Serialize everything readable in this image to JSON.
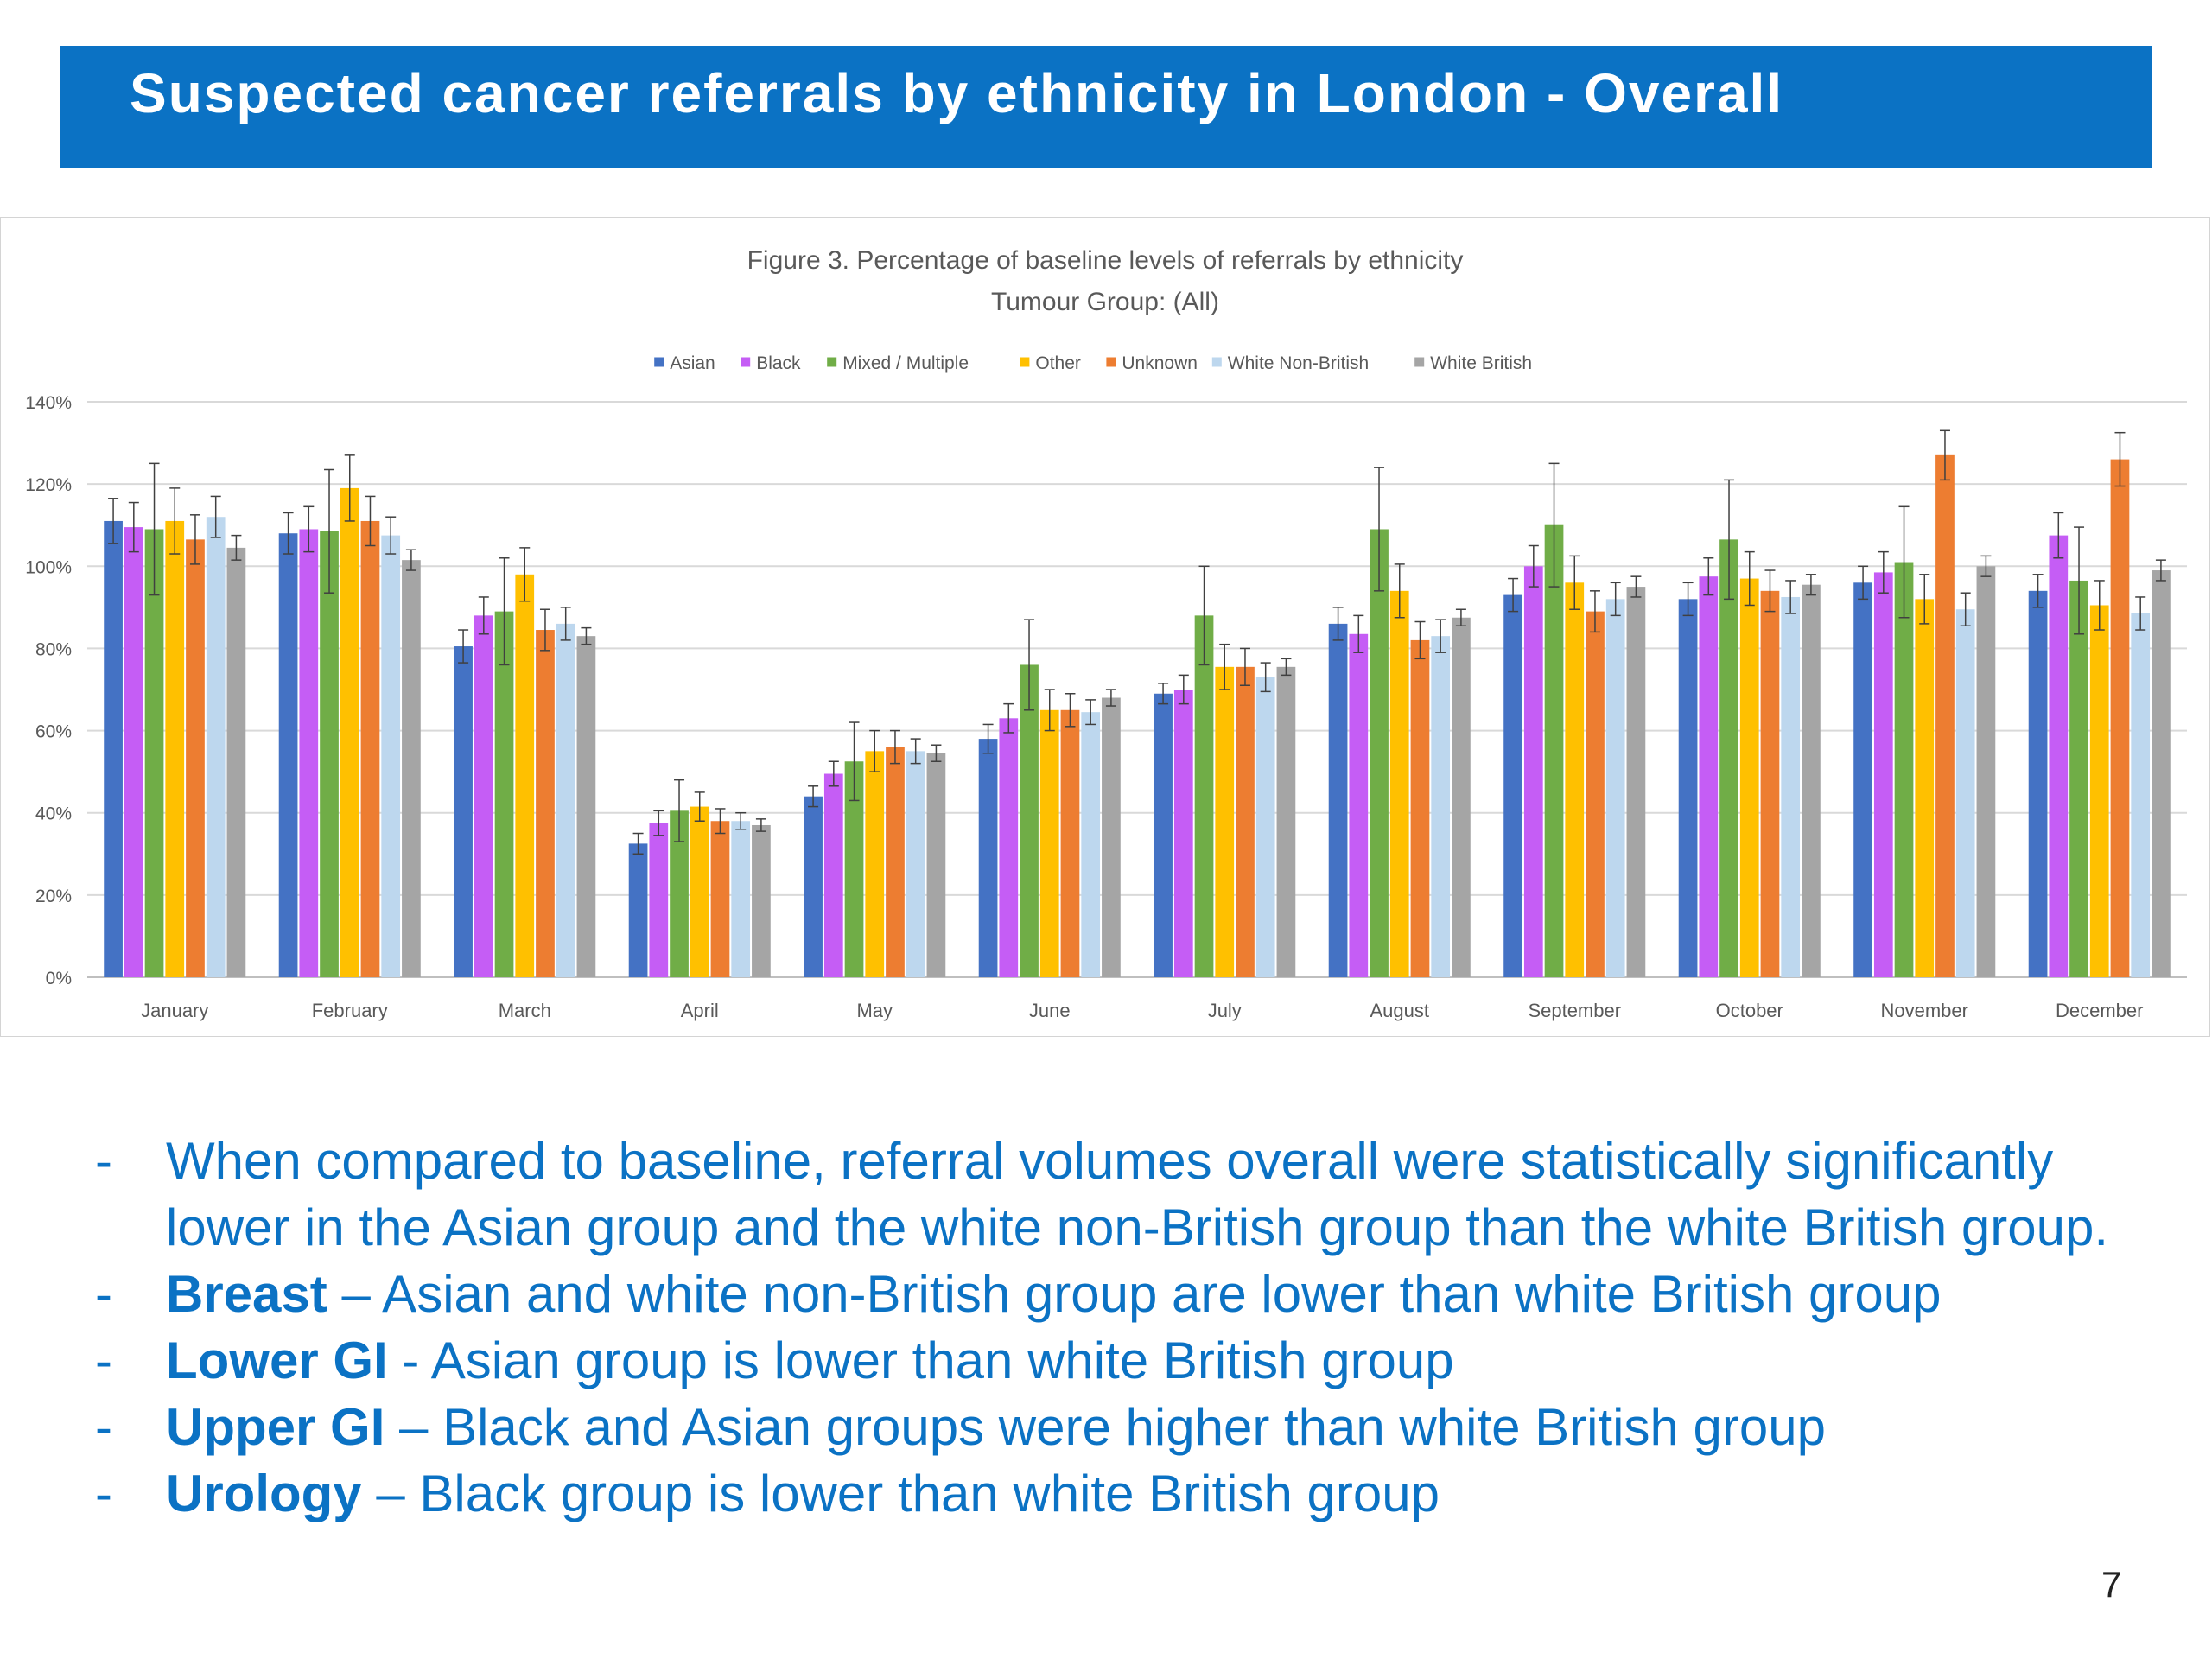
{
  "slide": {
    "title": "Suspected cancer referrals by ethnicity in London - Overall",
    "page_number": "7"
  },
  "chart_data": {
    "type": "bar",
    "title": "Figure 3. Percentage of baseline levels of referrals by ethnicity",
    "subtitle": "Tumour Group: (All)",
    "legend_position": "top",
    "grid": true,
    "ylim": [
      0,
      140
    ],
    "y_ticks": [
      "0%",
      "20%",
      "40%",
      "60%",
      "80%",
      "100%",
      "120%",
      "140%"
    ],
    "categories": [
      "January",
      "February",
      "March",
      "April",
      "May",
      "June",
      "July",
      "August",
      "September",
      "October",
      "November",
      "December"
    ],
    "series": [
      {
        "name": "Asian",
        "color": "#4472c4",
        "values": [
          111,
          108,
          80.5,
          32.5,
          44,
          58,
          69,
          86,
          93,
          92,
          96,
          94
        ],
        "error": [
          5.5,
          5,
          4,
          2.5,
          2.5,
          3.5,
          2.5,
          4,
          4,
          4,
          4,
          4
        ]
      },
      {
        "name": "Black",
        "color": "#c55df5",
        "values": [
          109.5,
          109,
          88,
          37.5,
          49.5,
          63,
          70,
          83.5,
          100,
          97.5,
          98.5,
          107.5
        ],
        "error": [
          6,
          5.5,
          4.5,
          3,
          3,
          3.5,
          3.5,
          4.5,
          5,
          4.5,
          5,
          5.5
        ]
      },
      {
        "name": "Mixed / Multiple",
        "color": "#70ad47",
        "values": [
          109,
          108.5,
          89,
          40.5,
          52.5,
          76,
          88,
          109,
          110,
          106.5,
          101,
          96.5
        ],
        "error": [
          16,
          15,
          13,
          7.5,
          9.5,
          11,
          12,
          15,
          15,
          14.5,
          13.5,
          13
        ]
      },
      {
        "name": "Other",
        "color": "#ffc000",
        "values": [
          111,
          119,
          98,
          41.5,
          55,
          65,
          75.5,
          94,
          96,
          97,
          92,
          90.5
        ],
        "error": [
          8,
          8,
          6.5,
          3.5,
          5,
          5,
          5.5,
          6.5,
          6.5,
          6.5,
          6,
          6
        ]
      },
      {
        "name": "Unknown",
        "color": "#ed7d31",
        "values": [
          106.5,
          111,
          84.5,
          38,
          56,
          65,
          75.5,
          82,
          89,
          94,
          127,
          126
        ],
        "error": [
          6,
          6,
          5,
          3,
          4,
          4,
          4.5,
          4.5,
          5,
          5,
          6,
          6.5
        ]
      },
      {
        "name": "White Non-British",
        "color": "#bdd7ee",
        "values": [
          112,
          107.5,
          86,
          38,
          55,
          64.5,
          73,
          83,
          92,
          92.5,
          89.5,
          88.5
        ],
        "error": [
          5,
          4.5,
          4,
          2,
          3,
          3,
          3.5,
          4,
          4,
          4,
          4,
          4
        ]
      },
      {
        "name": "White British",
        "color": "#a5a5a5",
        "values": [
          104.5,
          101.5,
          83,
          37,
          54.5,
          68,
          75.5,
          87.5,
          95,
          95.5,
          100,
          99
        ],
        "error": [
          3,
          2.5,
          2,
          1.5,
          2,
          2,
          2,
          2,
          2.5,
          2.5,
          2.5,
          2.5
        ]
      }
    ]
  },
  "bullets": [
    {
      "dash": "-",
      "bold": "",
      "text": "When compared to baseline, referral volumes overall were statistically significantly lower in the Asian group and the white non-British group than the white British group."
    },
    {
      "dash": "-",
      "bold": "Breast",
      "text": " – Asian and white non-British group  are lower than white British group"
    },
    {
      "dash": "-",
      "bold": "Lower GI",
      "text": " - Asian group is lower than white British group"
    },
    {
      "dash": "-",
      "bold": "Upper GI",
      "text": " – Black and Asian groups were higher than white British group"
    },
    {
      "dash": "-",
      "bold": "Urology",
      "text": " – Black group is lower than white British group"
    }
  ]
}
